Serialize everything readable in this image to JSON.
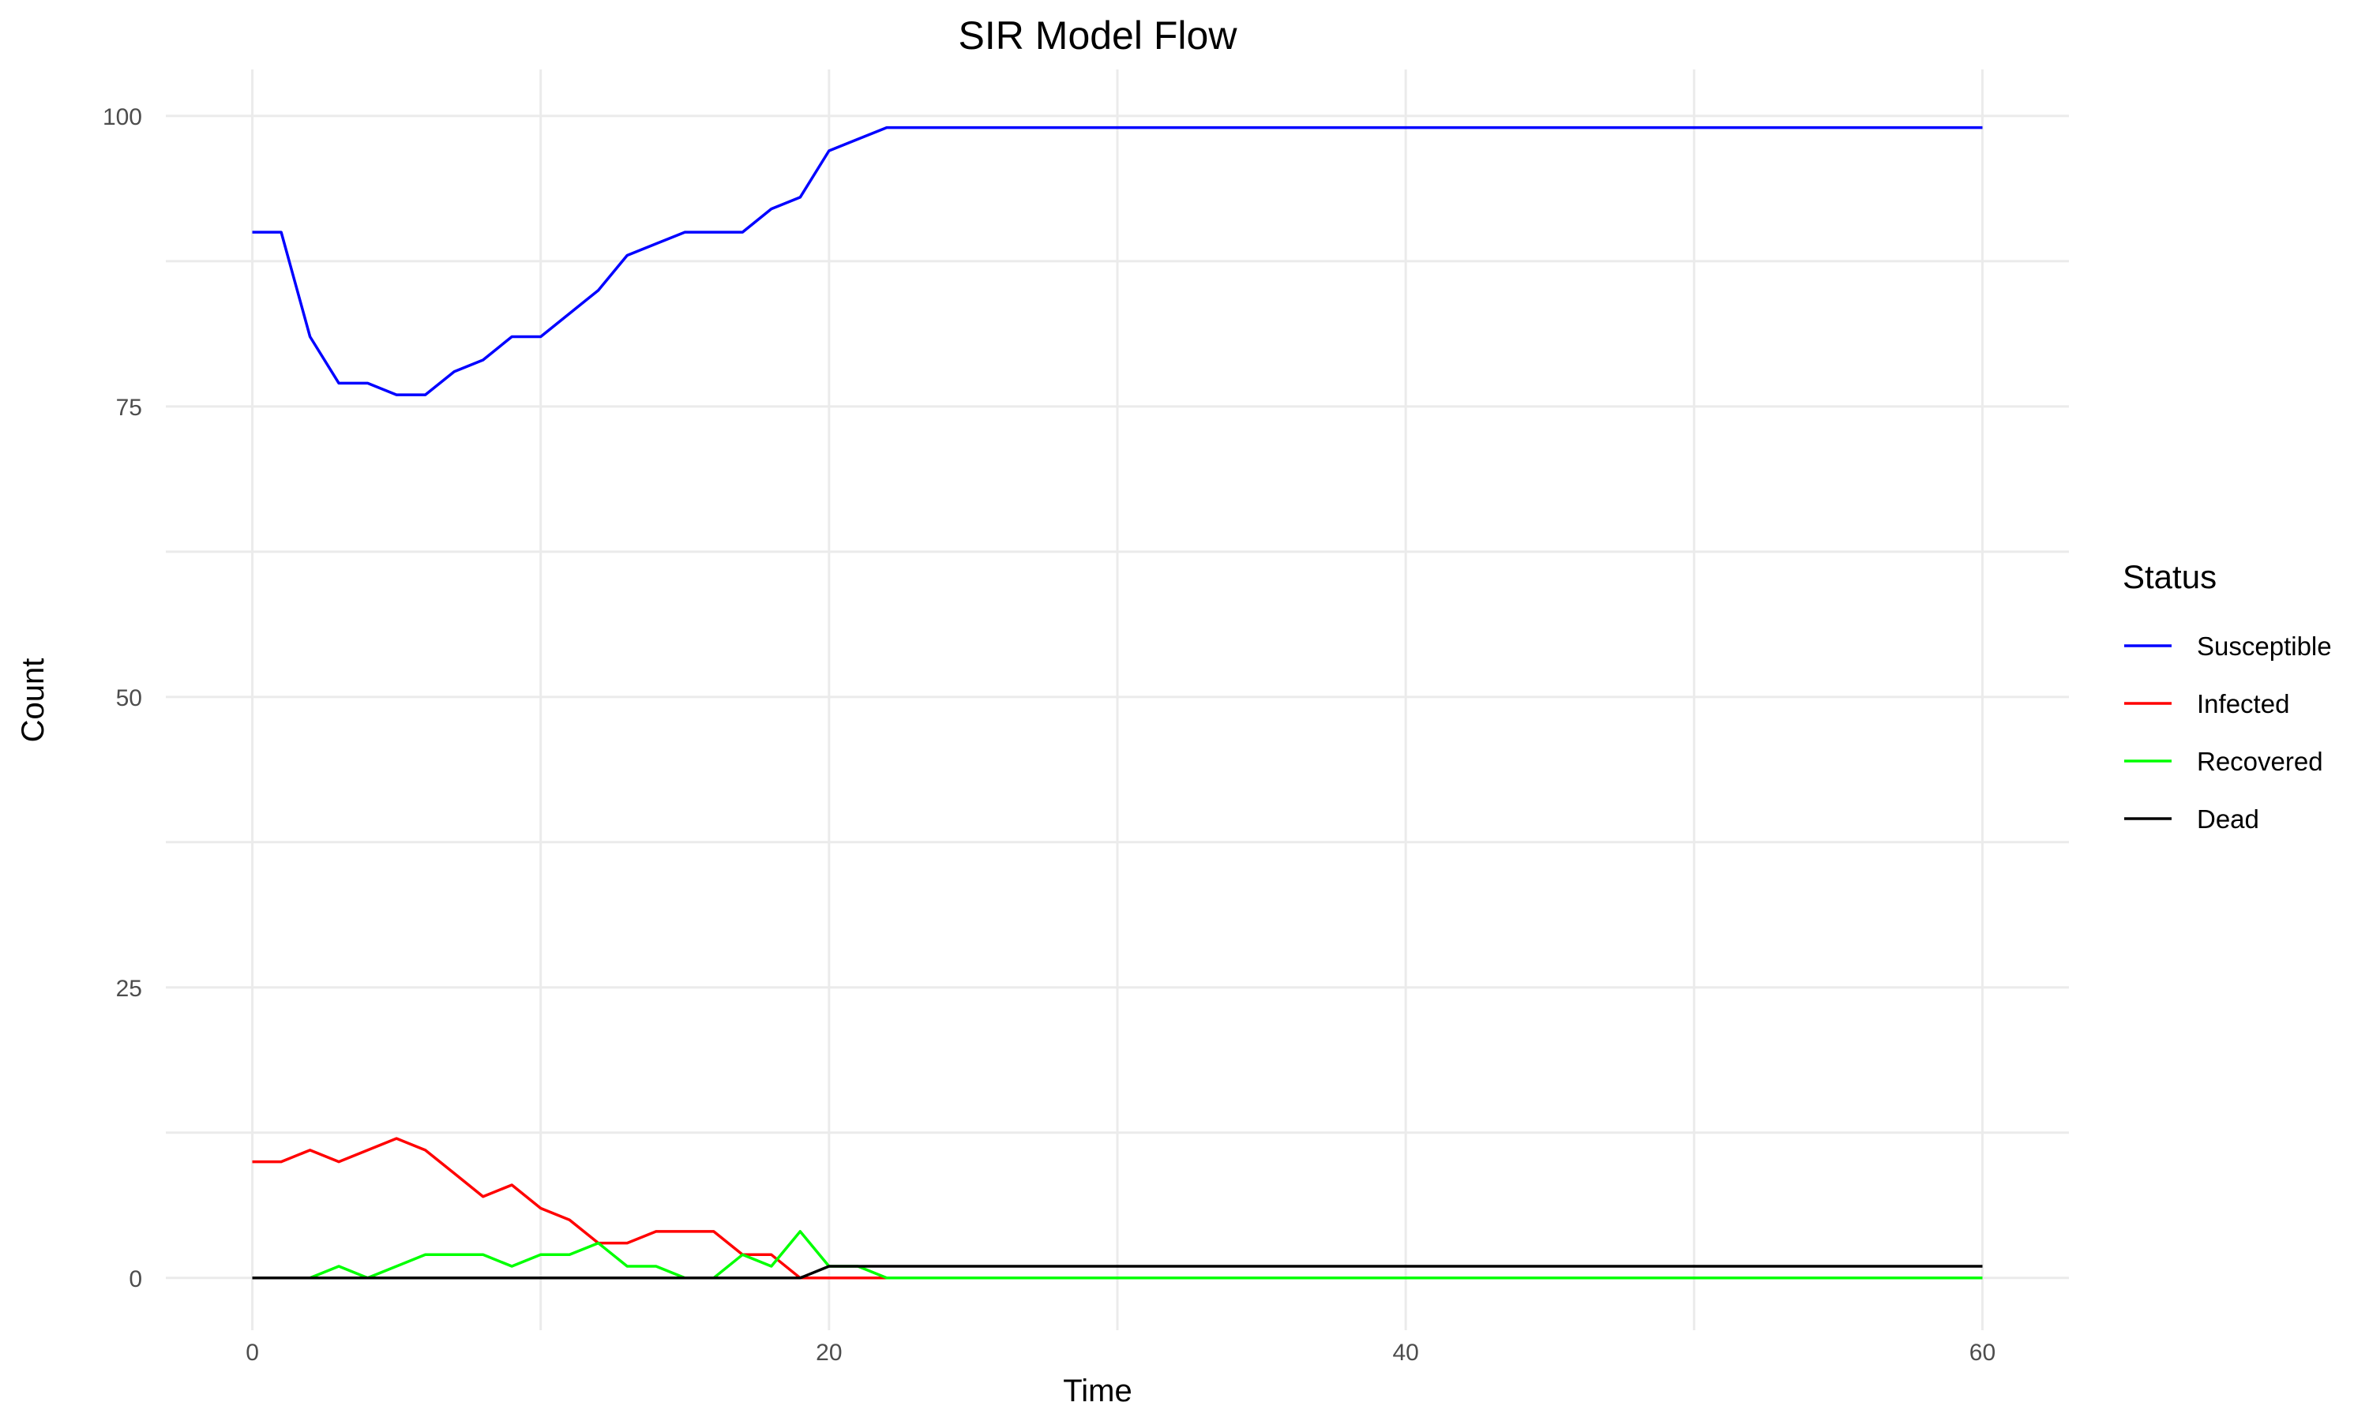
{
  "chart_data": {
    "type": "line",
    "title": "SIR Model Flow",
    "xlabel": "Time",
    "ylabel": "Count",
    "xlim": [
      -3,
      63
    ],
    "ylim": [
      -4.5,
      104
    ],
    "x_ticks": [
      0,
      20,
      40,
      60
    ],
    "y_ticks": [
      0,
      25,
      50,
      75,
      100
    ],
    "grid": true,
    "legend": {
      "title": "Status",
      "placement": "right"
    },
    "x": [
      0,
      1,
      2,
      3,
      4,
      5,
      6,
      7,
      8,
      9,
      10,
      11,
      12,
      13,
      14,
      15,
      16,
      17,
      18,
      19,
      20,
      21,
      22,
      23,
      24,
      25,
      26,
      27,
      28,
      29,
      30,
      31,
      32,
      33,
      34,
      35,
      36,
      37,
      38,
      39,
      40,
      41,
      42,
      43,
      44,
      45,
      46,
      47,
      48,
      49,
      50,
      51,
      52,
      53,
      54,
      55,
      56,
      57,
      58,
      59,
      60
    ],
    "series": [
      {
        "name": "Susceptible",
        "color": "#0000ff",
        "values": [
          90,
          90,
          81,
          77,
          77,
          76,
          76,
          78,
          79,
          81,
          81,
          83,
          85,
          88,
          89,
          90,
          90,
          90,
          92,
          93,
          97,
          98,
          99,
          99,
          99,
          99,
          99,
          99,
          99,
          99,
          99,
          99,
          99,
          99,
          99,
          99,
          99,
          99,
          99,
          99,
          99,
          99,
          99,
          99,
          99,
          99,
          99,
          99,
          99,
          99,
          99,
          99,
          99,
          99,
          99,
          99,
          99,
          99,
          99,
          99,
          99
        ]
      },
      {
        "name": "Infected",
        "color": "#ff0000",
        "values": [
          10,
          10,
          11,
          10,
          11,
          12,
          11,
          9,
          7,
          8,
          6,
          5,
          3,
          3,
          4,
          4,
          4,
          2,
          2,
          0,
          0,
          0,
          0,
          0,
          0,
          0,
          0,
          0,
          0,
          0,
          0,
          0,
          0,
          0,
          0,
          0,
          0,
          0,
          0,
          0,
          0,
          0,
          0,
          0,
          0,
          0,
          0,
          0,
          0,
          0,
          0,
          0,
          0,
          0,
          0,
          0,
          0,
          0,
          0,
          0,
          0
        ]
      },
      {
        "name": "Recovered",
        "color": "#00ff00",
        "values": [
          0,
          0,
          0,
          1,
          0,
          1,
          2,
          2,
          2,
          1,
          2,
          2,
          3,
          1,
          1,
          0,
          0,
          2,
          1,
          4,
          1,
          1,
          0,
          0,
          0,
          0,
          0,
          0,
          0,
          0,
          0,
          0,
          0,
          0,
          0,
          0,
          0,
          0,
          0,
          0,
          0,
          0,
          0,
          0,
          0,
          0,
          0,
          0,
          0,
          0,
          0,
          0,
          0,
          0,
          0,
          0,
          0,
          0,
          0,
          0,
          0
        ]
      },
      {
        "name": "Dead",
        "color": "#000000",
        "values": [
          0,
          0,
          0,
          0,
          0,
          0,
          0,
          0,
          0,
          0,
          0,
          0,
          0,
          0,
          0,
          0,
          0,
          0,
          0,
          0,
          1,
          1,
          1,
          1,
          1,
          1,
          1,
          1,
          1,
          1,
          1,
          1,
          1,
          1,
          1,
          1,
          1,
          1,
          1,
          1,
          1,
          1,
          1,
          1,
          1,
          1,
          1,
          1,
          1,
          1,
          1,
          1,
          1,
          1,
          1,
          1,
          1,
          1,
          1,
          1,
          1
        ]
      }
    ]
  }
}
